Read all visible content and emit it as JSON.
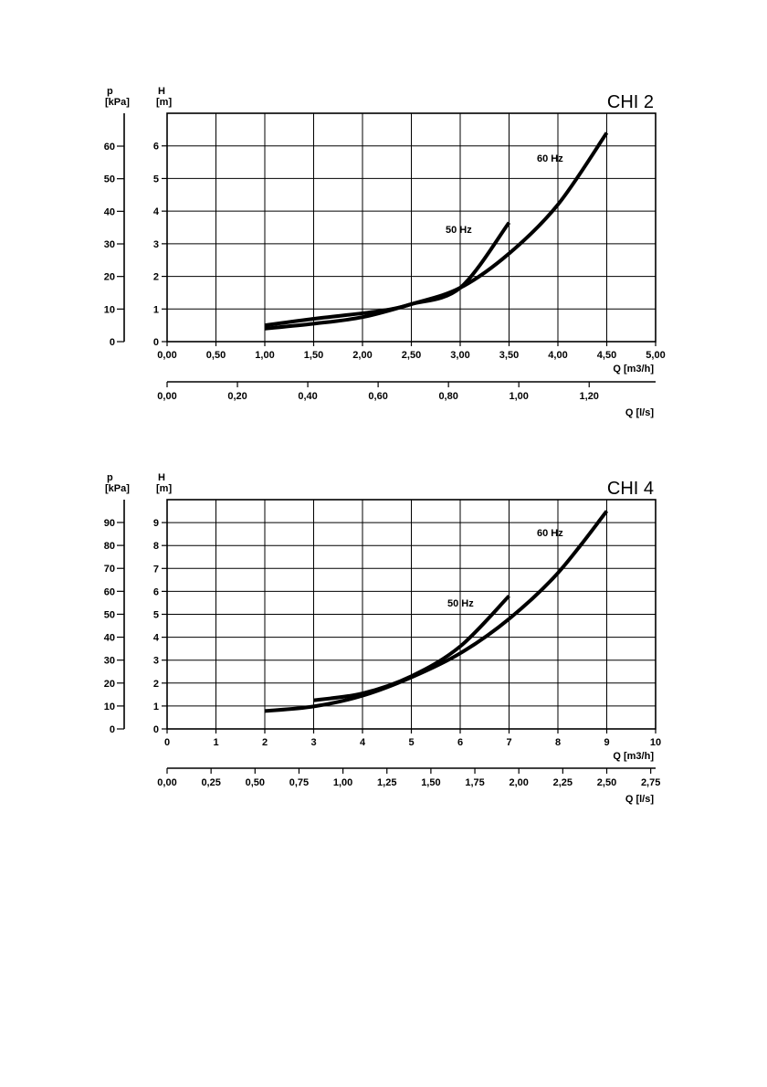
{
  "chart_data": [
    {
      "type": "line",
      "title": "CHI  2",
      "p_axis_label": "p",
      "p_axis_unit": "[kPa]",
      "h_axis_label": "H",
      "h_axis_unit": "[m]",
      "xlabel": "Q  [m3/h]",
      "x2label": "Q  [l/s]",
      "xlim": [
        0,
        5
      ],
      "ylim": [
        0,
        7
      ],
      "x_ticks": [
        "0,00",
        "0,50",
        "1,00",
        "1,50",
        "2,00",
        "2,50",
        "3,00",
        "3,50",
        "4,00",
        "4,50",
        "5,00"
      ],
      "x2_ticks": [
        "0,00",
        "0,20",
        "0,40",
        "0,60",
        "0,80",
        "1,00",
        "1,20"
      ],
      "x2_tick_values_m3h": [
        0,
        0.72,
        1.44,
        2.16,
        2.88,
        3.6,
        4.32
      ],
      "h_ticks": [
        "0",
        "1",
        "2",
        "3",
        "4",
        "5",
        "6"
      ],
      "p_ticks": [
        "0",
        "10",
        "20",
        "30",
        "40",
        "50",
        "60"
      ],
      "grid": true,
      "series": [
        {
          "name": "50  Hz",
          "x": [
            1.0,
            1.5,
            2.0,
            2.3,
            2.5,
            3.0,
            3.5
          ],
          "y": [
            0.5,
            0.7,
            0.87,
            1.0,
            1.15,
            1.65,
            3.65
          ]
        },
        {
          "name": "60  Hz",
          "x": [
            1.0,
            1.5,
            2.0,
            2.5,
            3.0,
            3.5,
            4.0,
            4.5
          ],
          "y": [
            0.4,
            0.55,
            0.75,
            1.15,
            1.65,
            2.7,
            4.2,
            6.4
          ]
        }
      ]
    },
    {
      "type": "line",
      "title": "CHI  4",
      "p_axis_label": "p",
      "p_axis_unit": "[kPa]",
      "h_axis_label": "H",
      "h_axis_unit": "[m]",
      "xlabel": "Q  [m3/h]",
      "x2label": "Q  [l/s]",
      "xlim": [
        0,
        10
      ],
      "ylim": [
        0,
        10
      ],
      "x_ticks": [
        "0",
        "1",
        "2",
        "3",
        "4",
        "5",
        "6",
        "7",
        "8",
        "9",
        "10"
      ],
      "x2_ticks": [
        "0,00",
        "0,25",
        "0,50",
        "0,75",
        "1,00",
        "1,25",
        "1,50",
        "1,75",
        "2,00",
        "2,25",
        "2,50",
        "2,75"
      ],
      "x2_tick_values_m3h": [
        0,
        0.9,
        1.8,
        2.7,
        3.6,
        4.5,
        5.4,
        6.3,
        7.2,
        8.1,
        9.0,
        9.9
      ],
      "h_ticks": [
        "0",
        "1",
        "2",
        "3",
        "4",
        "5",
        "6",
        "7",
        "8",
        "9"
      ],
      "p_ticks": [
        "0",
        "10",
        "20",
        "30",
        "40",
        "50",
        "60",
        "70",
        "80",
        "90"
      ],
      "grid": true,
      "series": [
        {
          "name": "50  Hz",
          "x": [
            3.0,
            4.0,
            5.0,
            6.0,
            7.0
          ],
          "y": [
            1.25,
            1.55,
            2.3,
            3.6,
            5.8
          ]
        },
        {
          "name": "60  Hz",
          "x": [
            2.0,
            3.0,
            4.0,
            5.0,
            6.0,
            7.0,
            8.0,
            9.0
          ],
          "y": [
            0.78,
            0.98,
            1.45,
            2.25,
            3.3,
            4.8,
            6.8,
            9.5
          ]
        }
      ]
    }
  ]
}
